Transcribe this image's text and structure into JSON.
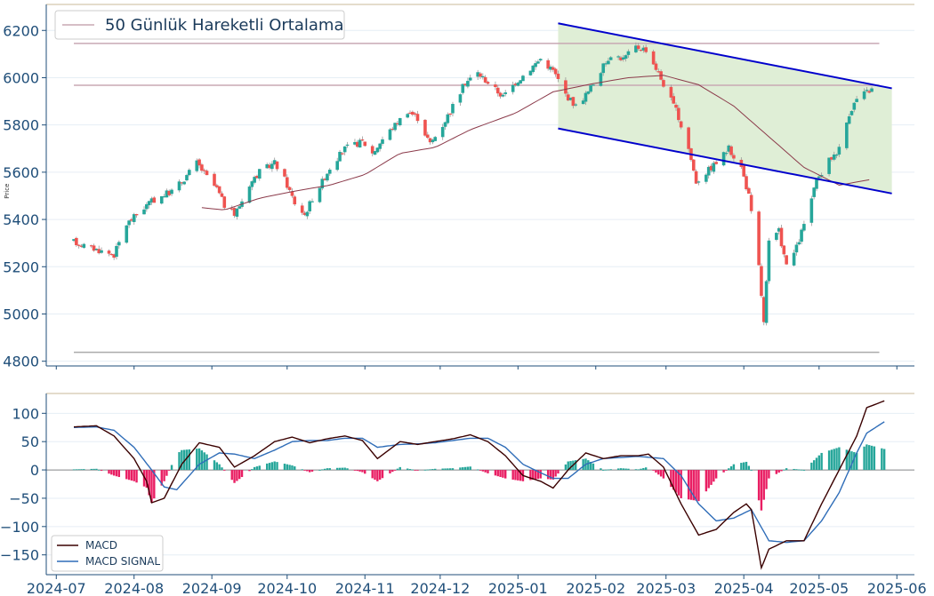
{
  "colors": {
    "up": "#26a69a",
    "down": "#ef5350",
    "ma": "#8b3a4a",
    "channel": "#0000cc",
    "channel_fill": "#dfeed6",
    "hline": "#c8a9b4",
    "support": "#aaaaaa",
    "macd": "#3a0000",
    "signal": "#2f6db8",
    "hist_pos": "#26a69a",
    "hist_neg": "#e91e63",
    "axis": "#1f4e79",
    "grid": "#e6eef5",
    "top_rule": "#c9b99a"
  },
  "chart_data": [
    {
      "type": "candlestick",
      "ylabel": "Price",
      "ylim": [
        4780,
        6310
      ],
      "y_ticks": [
        4800,
        5000,
        5200,
        5400,
        5600,
        5800,
        6000,
        6200
      ],
      "legend": {
        "label": "50 Günlük Hareketli Ortalama",
        "position": "top-left"
      },
      "grid": true,
      "horizontal_lines": [
        6145,
        5968,
        4838
      ],
      "channel": {
        "upper": {
          "start": [
            "2025-01-17",
            6230
          ],
          "end": [
            "2025-05-30",
            5955
          ]
        },
        "lower": {
          "start": [
            "2025-01-17",
            5785
          ],
          "end": [
            "2025-05-30",
            5510
          ]
        },
        "shaded": true
      },
      "price_path": [
        [
          "2024-07-08",
          5305
        ],
        [
          "2024-07-12",
          5290
        ],
        [
          "2024-07-18",
          5270
        ],
        [
          "2024-07-24",
          5250
        ],
        [
          "2024-07-29",
          5380
        ],
        [
          "2024-08-02",
          5420
        ],
        [
          "2024-08-07",
          5470
        ],
        [
          "2024-08-12",
          5500
        ],
        [
          "2024-08-16",
          5520
        ],
        [
          "2024-08-20",
          5560
        ],
        [
          "2024-08-26",
          5640
        ],
        [
          "2024-08-30",
          5580
        ],
        [
          "2024-09-03",
          5530
        ],
        [
          "2024-09-06",
          5460
        ],
        [
          "2024-09-10",
          5420
        ],
        [
          "2024-09-13",
          5480
        ],
        [
          "2024-09-16",
          5550
        ],
        [
          "2024-09-20",
          5600
        ],
        [
          "2024-09-26",
          5640
        ],
        [
          "2024-09-30",
          5570
        ],
        [
          "2024-10-04",
          5470
        ],
        [
          "2024-10-08",
          5420
        ],
        [
          "2024-10-11",
          5490
        ],
        [
          "2024-10-15",
          5560
        ],
        [
          "2024-10-18",
          5620
        ],
        [
          "2024-10-24",
          5700
        ],
        [
          "2024-10-31",
          5730
        ],
        [
          "2024-11-04",
          5680
        ],
        [
          "2024-11-08",
          5740
        ],
        [
          "2024-11-13",
          5800
        ],
        [
          "2024-11-18",
          5860
        ],
        [
          "2024-11-22",
          5830
        ],
        [
          "2024-11-27",
          5720
        ],
        [
          "2024-12-02",
          5800
        ],
        [
          "2024-12-06",
          5880
        ],
        [
          "2024-12-11",
          5980
        ],
        [
          "2024-12-16",
          6020
        ],
        [
          "2024-12-20",
          5980
        ],
        [
          "2024-12-26",
          5920
        ],
        [
          "2024-12-31",
          5980
        ],
        [
          "2025-01-06",
          6040
        ],
        [
          "2025-01-10",
          6080
        ],
        [
          "2025-01-15",
          6030
        ],
        [
          "2025-01-20",
          5930
        ],
        [
          "2025-01-24",
          5880
        ],
        [
          "2025-01-29",
          5940
        ],
        [
          "2025-02-03",
          6030
        ],
        [
          "2025-02-07",
          6100
        ],
        [
          "2025-02-12",
          6080
        ],
        [
          "2025-02-17",
          6130
        ],
        [
          "2025-02-21",
          6120
        ],
        [
          "2025-02-25",
          6040
        ],
        [
          "2025-03-01",
          5950
        ],
        [
          "2025-03-05",
          5860
        ],
        [
          "2025-03-10",
          5700
        ],
        [
          "2025-03-13",
          5560
        ],
        [
          "2025-03-17",
          5600
        ],
        [
          "2025-03-21",
          5640
        ],
        [
          "2025-03-26",
          5700
        ],
        [
          "2025-03-31",
          5620
        ],
        [
          "2025-04-03",
          5500
        ],
        [
          "2025-04-07",
          5200
        ],
        [
          "2025-04-09",
          4960
        ],
        [
          "2025-04-11",
          5300
        ],
        [
          "2025-04-15",
          5350
        ],
        [
          "2025-04-18",
          5200
        ],
        [
          "2025-04-22",
          5280
        ],
        [
          "2025-04-25",
          5380
        ],
        [
          "2025-04-30",
          5560
        ],
        [
          "2025-05-05",
          5650
        ],
        [
          "2025-05-09",
          5700
        ],
        [
          "2025-05-13",
          5850
        ],
        [
          "2025-05-16",
          5910
        ],
        [
          "2025-05-20",
          5940
        ],
        [
          "2025-05-22",
          5950
        ]
      ],
      "ma_path": [
        [
          "2024-08-28",
          5450
        ],
        [
          "2024-09-06",
          5440
        ],
        [
          "2024-09-20",
          5490
        ],
        [
          "2024-10-04",
          5520
        ],
        [
          "2024-10-18",
          5545
        ],
        [
          "2024-11-01",
          5590
        ],
        [
          "2024-11-15",
          5680
        ],
        [
          "2024-11-29",
          5705
        ],
        [
          "2024-12-13",
          5780
        ],
        [
          "2024-12-31",
          5850
        ],
        [
          "2025-01-15",
          5940
        ],
        [
          "2025-01-31",
          5975
        ],
        [
          "2025-02-14",
          6000
        ],
        [
          "2025-02-28",
          6010
        ],
        [
          "2025-03-14",
          5970
        ],
        [
          "2025-03-28",
          5880
        ],
        [
          "2025-04-11",
          5750
        ],
        [
          "2025-04-25",
          5620
        ],
        [
          "2025-05-09",
          5545
        ],
        [
          "2025-05-22",
          5570
        ]
      ]
    },
    {
      "type": "macd",
      "ylim": [
        -185,
        135
      ],
      "y_ticks": [
        -150,
        -100,
        -50,
        0,
        50,
        100
      ],
      "x_ticks": [
        "2024-07",
        "2024-08",
        "2024-09",
        "2024-10",
        "2024-11",
        "2024-12",
        "2025-01",
        "2025-02",
        "2025-03",
        "2025-04",
        "2025-05",
        "2025-06"
      ],
      "legend": {
        "entries": [
          "MACD",
          "MACD SIGNAL"
        ],
        "position": "bottom-left"
      },
      "grid": true,
      "macd": [
        [
          "2024-07-08",
          76
        ],
        [
          "2024-07-17",
          78
        ],
        [
          "2024-07-24",
          60
        ],
        [
          "2024-08-01",
          20
        ],
        [
          "2024-08-06",
          -20
        ],
        [
          "2024-08-08",
          -58
        ],
        [
          "2024-08-13",
          -50
        ],
        [
          "2024-08-20",
          10
        ],
        [
          "2024-08-27",
          48
        ],
        [
          "2024-09-04",
          40
        ],
        [
          "2024-09-10",
          5
        ],
        [
          "2024-09-18",
          25
        ],
        [
          "2024-09-26",
          50
        ],
        [
          "2024-10-03",
          58
        ],
        [
          "2024-10-10",
          48
        ],
        [
          "2024-10-17",
          55
        ],
        [
          "2024-10-24",
          60
        ],
        [
          "2024-10-31",
          52
        ],
        [
          "2024-11-06",
          20
        ],
        [
          "2024-11-15",
          50
        ],
        [
          "2024-11-22",
          45
        ],
        [
          "2024-11-29",
          50
        ],
        [
          "2024-12-06",
          55
        ],
        [
          "2024-12-13",
          62
        ],
        [
          "2024-12-20",
          50
        ],
        [
          "2024-12-27",
          25
        ],
        [
          "2025-01-03",
          -10
        ],
        [
          "2025-01-10",
          -20
        ],
        [
          "2025-01-15",
          -32
        ],
        [
          "2025-01-21",
          0
        ],
        [
          "2025-01-28",
          30
        ],
        [
          "2025-02-04",
          20
        ],
        [
          "2025-02-11",
          25
        ],
        [
          "2025-02-18",
          25
        ],
        [
          "2025-02-22",
          28
        ],
        [
          "2025-02-28",
          5
        ],
        [
          "2025-03-07",
          -60
        ],
        [
          "2025-03-14",
          -115
        ],
        [
          "2025-03-21",
          -105
        ],
        [
          "2025-03-28",
          -75
        ],
        [
          "2025-04-02",
          -60
        ],
        [
          "2025-04-04",
          -70
        ],
        [
          "2025-04-08",
          -173
        ],
        [
          "2025-04-11",
          -140
        ],
        [
          "2025-04-18",
          -125
        ],
        [
          "2025-04-25",
          -125
        ],
        [
          "2025-05-02",
          -60
        ],
        [
          "2025-05-09",
          0
        ],
        [
          "2025-05-16",
          60
        ],
        [
          "2025-05-20",
          110
        ],
        [
          "2025-05-27",
          122
        ]
      ],
      "signal": [
        [
          "2024-07-08",
          75
        ],
        [
          "2024-07-17",
          76
        ],
        [
          "2024-07-24",
          70
        ],
        [
          "2024-08-01",
          40
        ],
        [
          "2024-08-08",
          0
        ],
        [
          "2024-08-13",
          -30
        ],
        [
          "2024-08-18",
          -35
        ],
        [
          "2024-08-27",
          10
        ],
        [
          "2024-09-04",
          30
        ],
        [
          "2024-09-10",
          28
        ],
        [
          "2024-09-18",
          20
        ],
        [
          "2024-09-26",
          35
        ],
        [
          "2024-10-03",
          50
        ],
        [
          "2024-10-10",
          52
        ],
        [
          "2024-10-17",
          52
        ],
        [
          "2024-10-24",
          56
        ],
        [
          "2024-10-31",
          56
        ],
        [
          "2024-11-06",
          40
        ],
        [
          "2024-11-15",
          45
        ],
        [
          "2024-11-22",
          46
        ],
        [
          "2024-11-29",
          48
        ],
        [
          "2024-12-06",
          52
        ],
        [
          "2024-12-13",
          56
        ],
        [
          "2024-12-20",
          56
        ],
        [
          "2024-12-27",
          40
        ],
        [
          "2025-01-03",
          10
        ],
        [
          "2025-01-10",
          -5
        ],
        [
          "2025-01-15",
          -15
        ],
        [
          "2025-01-21",
          -15
        ],
        [
          "2025-01-28",
          10
        ],
        [
          "2025-02-04",
          20
        ],
        [
          "2025-02-11",
          22
        ],
        [
          "2025-02-18",
          24
        ],
        [
          "2025-02-28",
          20
        ],
        [
          "2025-03-07",
          -10
        ],
        [
          "2025-03-14",
          -60
        ],
        [
          "2025-03-21",
          -90
        ],
        [
          "2025-03-28",
          -85
        ],
        [
          "2025-04-04",
          -70
        ],
        [
          "2025-04-11",
          -125
        ],
        [
          "2025-04-18",
          -128
        ],
        [
          "2025-04-25",
          -125
        ],
        [
          "2025-05-02",
          -90
        ],
        [
          "2025-05-09",
          -40
        ],
        [
          "2025-05-16",
          30
        ],
        [
          "2025-05-20",
          65
        ],
        [
          "2025-05-27",
          85
        ]
      ]
    }
  ]
}
